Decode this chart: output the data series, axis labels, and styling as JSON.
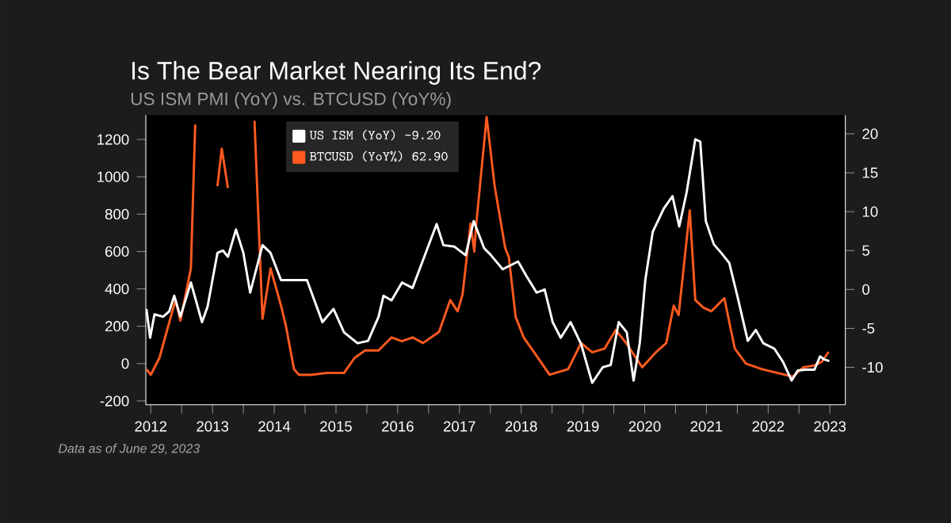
{
  "chart_data": {
    "type": "line",
    "title": "Is The Bear Market Nearing Its End?",
    "subtitle": "US ISM PMI (YoY) vs. BTCUSD (YoY%)",
    "annotations": [
      "Data as of June 29, 2023"
    ],
    "xlim": [
      2012.42,
      2023.75
    ],
    "xticks": [
      {
        "value": 2012.5,
        "label": "2012"
      },
      {
        "value": 2013,
        "label": null
      },
      {
        "value": 2013.5,
        "label": "2013"
      },
      {
        "value": 2014,
        "label": null
      },
      {
        "value": 2014.5,
        "label": "2014"
      },
      {
        "value": 2015,
        "label": null
      },
      {
        "value": 2015.5,
        "label": "2015"
      },
      {
        "value": 2016,
        "label": null
      },
      {
        "value": 2016.5,
        "label": "2016"
      },
      {
        "value": 2017,
        "label": null
      },
      {
        "value": 2017.5,
        "label": "2017"
      },
      {
        "value": 2018,
        "label": null
      },
      {
        "value": 2018.5,
        "label": "2018"
      },
      {
        "value": 2019,
        "label": null
      },
      {
        "value": 2019.5,
        "label": "2019"
      },
      {
        "value": 2020,
        "label": null
      },
      {
        "value": 2020.5,
        "label": "2020"
      },
      {
        "value": 2021,
        "label": null
      },
      {
        "value": 2021.5,
        "label": "2021"
      },
      {
        "value": 2022,
        "label": null
      },
      {
        "value": 2022.5,
        "label": "2022"
      },
      {
        "value": 2023,
        "label": null
      },
      {
        "value": 2023.5,
        "label": "2023"
      }
    ],
    "ylim": [
      -220,
      1330
    ],
    "yticks": [
      -200,
      0,
      200,
      400,
      600,
      800,
      1000,
      1200
    ],
    "y2lim": [
      -14.8,
      22.4
    ],
    "y2ticks": [
      -10,
      -5,
      0,
      5,
      10,
      15,
      20
    ],
    "grid": false,
    "legend": "top left",
    "marker": "none",
    "line_style": "solid",
    "series": [
      {
        "name": "US ISM (YoY)  -9.20",
        "color": "#ffffff",
        "axis": "y2",
        "x": [
          2012.43,
          2012.49,
          2012.56,
          2012.7,
          2012.8,
          2012.88,
          2012.98,
          2013.15,
          2013.33,
          2013.42,
          2013.58,
          2013.67,
          2013.75,
          2013.88,
          2014.0,
          2014.11,
          2014.31,
          2014.44,
          2014.61,
          2014.82,
          2015.03,
          2015.28,
          2015.46,
          2015.63,
          2015.85,
          2016.02,
          2016.19,
          2016.27,
          2016.4,
          2016.57,
          2016.74,
          2017.13,
          2017.24,
          2017.42,
          2017.6,
          2017.73,
          2017.9,
          2018.0,
          2018.2,
          2018.45,
          2018.58,
          2018.75,
          2018.88,
          2019.01,
          2019.14,
          2019.3,
          2019.47,
          2019.65,
          2019.82,
          2019.95,
          2020.08,
          2020.21,
          2020.32,
          2020.42,
          2020.51,
          2020.63,
          2020.81,
          2020.95,
          2021.06,
          2021.18,
          2021.32,
          2021.4,
          2021.49,
          2021.62,
          2021.74,
          2021.87,
          2022.0,
          2022.17,
          2022.3,
          2022.42,
          2022.6,
          2022.74,
          2022.88,
          2022.98,
          2023.11,
          2023.25,
          2023.34,
          2023.41,
          2023.49
        ],
        "values": [
          -2.5,
          -6.2,
          -3.2,
          -3.5,
          -2.8,
          -0.8,
          -3.5,
          0.9,
          -4.2,
          -2.2,
          4.7,
          5.0,
          4.2,
          7.7,
          4.7,
          -0.4,
          5.7,
          4.7,
          1.2,
          1.2,
          1.2,
          -4.2,
          -2.5,
          -5.5,
          -6.9,
          -6.6,
          -3.5,
          -0.8,
          -1.4,
          0.9,
          0.2,
          8.4,
          5.7,
          5.5,
          4.4,
          8.8,
          5.3,
          4.5,
          2.6,
          3.6,
          1.8,
          -0.4,
          0.0,
          -4.2,
          -6.2,
          -4.2,
          -7.0,
          -12.0,
          -10.0,
          -9.7,
          -4.2,
          -5.5,
          -11.7,
          -6.9,
          1.2,
          7.4,
          10.4,
          12.0,
          8.1,
          12.5,
          19.3,
          19.0,
          8.8,
          5.8,
          4.7,
          3.4,
          -0.8,
          -6.6,
          -5.2,
          -6.9,
          -7.6,
          -9.3,
          -11.7,
          -10.4,
          -10.3,
          -10.3,
          -8.6,
          -9.0,
          -9.2
        ]
      },
      {
        "name": "BTCUSD (YoY%) 62.90",
        "color": "#ff5a1f",
        "axis": "y",
        "x": [
          2012.43,
          2012.5,
          2012.64,
          2012.9,
          2012.98,
          2013.15,
          2013.22,
          2013.3,
          2013.5,
          2013.58,
          2013.65,
          2013.75,
          2013.8,
          2014.1,
          2014.18,
          2014.31,
          2014.44,
          2014.61,
          2014.69,
          2014.82,
          2014.9,
          2015.1,
          2015.35,
          2015.63,
          2015.8,
          2015.97,
          2016.19,
          2016.4,
          2016.57,
          2016.74,
          2016.91,
          2017.17,
          2017.35,
          2017.47,
          2017.55,
          2017.68,
          2017.74,
          2017.77,
          2017.94,
          2018.07,
          2018.24,
          2018.3,
          2018.41,
          2018.54,
          2018.71,
          2018.96,
          2019.26,
          2019.47,
          2019.65,
          2019.85,
          2020.03,
          2020.2,
          2020.46,
          2020.68,
          2020.85,
          2020.97,
          2021.05,
          2021.23,
          2021.32,
          2021.45,
          2021.58,
          2021.7,
          2021.79,
          2021.96,
          2022.14,
          2022.4,
          2022.65,
          2022.9,
          2023.07,
          2023.25,
          2023.37,
          2023.48
        ],
        "values": [
          -30,
          -60,
          30,
          340,
          230,
          510,
          1280,
          null,
          null,
          950,
          1150,
          940,
          null,
          null,
          1300,
          240,
          510,
          310,
          200,
          -30,
          -60,
          -60,
          -50,
          -50,
          30,
          70,
          70,
          140,
          120,
          140,
          110,
          170,
          340,
          280,
          370,
          750,
          600,
          740,
          1320,
          950,
          620,
          570,
          250,
          140,
          60,
          -60,
          -30,
          110,
          60,
          80,
          180,
          110,
          -20,
          60,
          110,
          310,
          260,
          820,
          340,
          300,
          280,
          320,
          350,
          80,
          0,
          -30,
          -50,
          -70,
          -20,
          -10,
          10,
          62.9
        ]
      }
    ]
  }
}
